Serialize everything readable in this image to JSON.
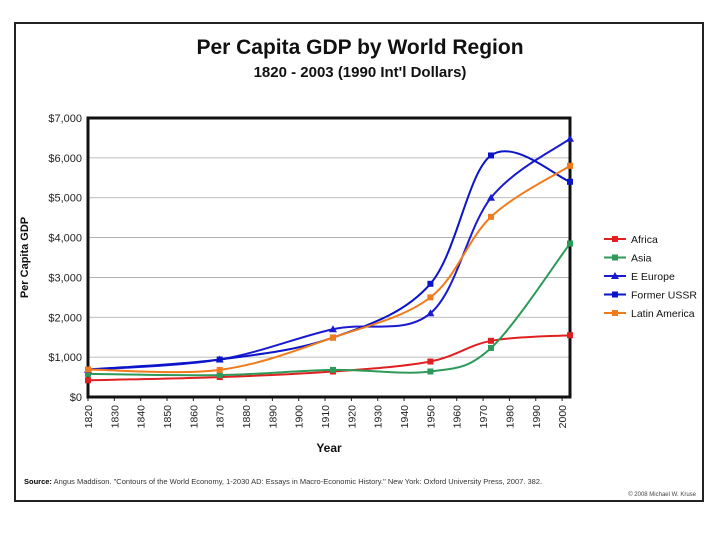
{
  "chart_data": {
    "type": "line",
    "title": "Per Capita GDP by World Region",
    "subtitle": "1820 - 2003 (1990 Int'l Dollars)",
    "xlabel": "Year",
    "ylabel": "Per Capita GDP",
    "xlim": [
      1820,
      2003
    ],
    "ylim": [
      0,
      7000
    ],
    "x_ticks": [
      "1820",
      "1830",
      "1840",
      "1850",
      "1860",
      "1870",
      "1880",
      "1890",
      "1900",
      "1910",
      "1920",
      "1930",
      "1940",
      "1950",
      "1960",
      "1970",
      "1980",
      "1990",
      "2000"
    ],
    "y_ticks": [
      "$0",
      "$1,000",
      "$2,000",
      "$3,000",
      "$4,000",
      "$5,000",
      "$6,000",
      "$7,000"
    ],
    "grid": true,
    "legend_position": "right",
    "series": [
      {
        "name": "Africa",
        "color": "#e02020",
        "marker": "square",
        "x": [
          1820,
          1870,
          1913,
          1950,
          1973,
          2003
        ],
        "y": [
          420,
          500,
          640,
          890,
          1410,
          1550
        ]
      },
      {
        "name": "Asia",
        "color": "#2e9a5a",
        "marker": "square",
        "x": [
          1820,
          1870,
          1913,
          1950,
          1973,
          2003
        ],
        "y": [
          580,
          550,
          680,
          640,
          1230,
          3850
        ]
      },
      {
        "name": "E Europe",
        "color": "#1a1ad0",
        "marker": "triangle",
        "x": [
          1820,
          1870,
          1913,
          1950,
          1973,
          2003
        ],
        "y": [
          680,
          940,
          1700,
          2100,
          5000,
          6480
        ]
      },
      {
        "name": "Former USSR",
        "color": "#0a14c8",
        "marker": "square",
        "x": [
          1820,
          1870,
          1913,
          1950,
          1973,
          2003
        ],
        "y": [
          690,
          940,
          1490,
          2840,
          6060,
          5400
        ]
      },
      {
        "name": "Latin America",
        "color": "#f07b1c",
        "marker": "square",
        "x": [
          1820,
          1870,
          1913,
          1950,
          1973,
          2003
        ],
        "y": [
          690,
          680,
          1490,
          2500,
          4520,
          5800
        ]
      }
    ]
  },
  "source": {
    "label": "Source:",
    "text": "Angus Maddison. \"Contours of the World Economy, 1-2030 AD: Essays in Macro-Economic History.\" New York: Oxford University Press, 2007. 382."
  },
  "copyright": "© 2008 Michael W. Kruse"
}
